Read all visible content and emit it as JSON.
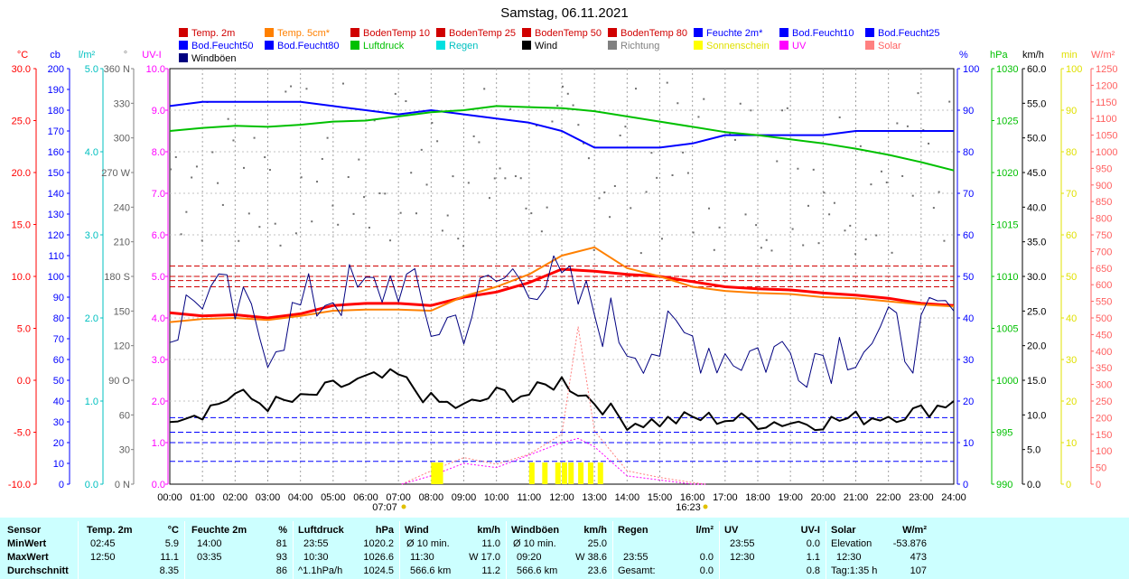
{
  "title": "Samstag, 06.11.2021",
  "legend": [
    {
      "label": "Temp. 2m",
      "color": "#d00000"
    },
    {
      "label": "Temp. 5cm*",
      "color": "#ff8000"
    },
    {
      "label": "BodenTemp 10",
      "color": "#d00000"
    },
    {
      "label": "BodenTemp 25",
      "color": "#d00000"
    },
    {
      "label": "BodenTemp 50",
      "color": "#d00000"
    },
    {
      "label": "BodenTemp 80",
      "color": "#d00000"
    },
    {
      "label": "Feuchte 2m*",
      "color": "#0000ff"
    },
    {
      "label": "Bod.Feucht10",
      "color": "#0000ff"
    },
    {
      "label": "Bod.Feucht25",
      "color": "#0000ff"
    },
    {
      "label": "Bod.Feucht50",
      "color": "#0000ff"
    },
    {
      "label": "Bod.Feucht80",
      "color": "#0000ff"
    },
    {
      "label": "Luftdruck",
      "color": "#00c000"
    },
    {
      "label": "Regen",
      "color": "#00e0e0"
    },
    {
      "label": "Wind",
      "color": "#000000"
    },
    {
      "label": "Richtung",
      "color": "#808080"
    },
    {
      "label": "Sonnenschein",
      "color": "#ffff00"
    },
    {
      "label": "UV",
      "color": "#ff00ff"
    },
    {
      "label": "Solar",
      "color": "#ff8080"
    },
    {
      "label": "Windböen",
      "color": "#000080"
    }
  ],
  "sunrise": "07:07",
  "sunset": "16:23",
  "chart_data": {
    "type": "line",
    "title": "Samstag, 06.11.2021",
    "x_ticks": [
      "00:00",
      "01:00",
      "02:00",
      "03:00",
      "04:00",
      "05:00",
      "06:00",
      "07:00",
      "08:00",
      "09:00",
      "10:00",
      "11:00",
      "12:00",
      "13:00",
      "14:00",
      "15:00",
      "16:00",
      "17:00",
      "18:00",
      "19:00",
      "20:00",
      "21:00",
      "22:00",
      "23:00",
      "24:00"
    ],
    "axes": [
      {
        "unit": "°C",
        "color": "#ff0000",
        "range": [
          -10,
          30
        ],
        "ticks": [
          "30.0",
          "25.0",
          "20.0",
          "15.0",
          "10.0",
          "5.0",
          "0.0",
          "-5.0",
          "-10.0"
        ]
      },
      {
        "unit": "cb",
        "color": "#0000ff",
        "range": [
          0,
          200
        ],
        "ticks": [
          "200",
          "190",
          "180",
          "170",
          "160",
          "150",
          "140",
          "130",
          "120",
          "110",
          "100",
          "90",
          "80",
          "70",
          "60",
          "50",
          "40",
          "30",
          "20",
          "10",
          "0"
        ]
      },
      {
        "unit": "l/m²",
        "color": "#00c0c0",
        "range": [
          0,
          5
        ],
        "ticks": [
          "5.0",
          "4.0",
          "3.0",
          "2.0",
          "1.0",
          "0.0"
        ]
      },
      {
        "unit": "°",
        "color": "#808080",
        "range": [
          0,
          360
        ],
        "ticks": [
          "360 N",
          "330",
          "300",
          "270 W",
          "240",
          "210",
          "180 S",
          "150",
          "120",
          "90 O",
          "60",
          "30",
          "0 N"
        ]
      },
      {
        "unit": "UV-I",
        "color": "#ff00ff",
        "range": [
          0,
          10
        ],
        "ticks": [
          "10.0",
          "9.0",
          "8.0",
          "7.0",
          "6.0",
          "5.0",
          "4.0",
          "3.0",
          "2.0",
          "1.0",
          "0.0"
        ]
      },
      {
        "unit": "%",
        "color": "#0000ff",
        "range": [
          0,
          100
        ],
        "ticks": [
          "100",
          "90",
          "80",
          "70",
          "60",
          "50",
          "40",
          "30",
          "20",
          "10",
          "0"
        ]
      },
      {
        "unit": "hPa",
        "color": "#00c000",
        "range": [
          990,
          1030
        ],
        "ticks": [
          "1030",
          "1025",
          "1020",
          "1015",
          "1010",
          "1005",
          "1000",
          "995",
          "990"
        ]
      },
      {
        "unit": "km/h",
        "color": "#000000",
        "range": [
          0,
          60
        ],
        "ticks": [
          "60.0",
          "55.0",
          "50.0",
          "45.0",
          "40.0",
          "35.0",
          "30.0",
          "25.0",
          "20.0",
          "15.0",
          "10.0",
          "5.0",
          "0.0"
        ]
      },
      {
        "unit": "min",
        "color": "#e0e000",
        "range": [
          0,
          100
        ],
        "ticks": [
          "100",
          "90",
          "80",
          "70",
          "60",
          "50",
          "40",
          "30",
          "20",
          "10",
          "0"
        ]
      },
      {
        "unit": "W/m²",
        "color": "#ff6060",
        "range": [
          0,
          1250
        ],
        "ticks": [
          "1250",
          "1200",
          "1150",
          "1100",
          "1050",
          "1000",
          "950",
          "900",
          "850",
          "800",
          "750",
          "700",
          "650",
          "600",
          "550",
          "500",
          "450",
          "400",
          "350",
          "300",
          "250",
          "200",
          "150",
          "100",
          "50",
          "0"
        ]
      }
    ],
    "series": [
      {
        "name": "Temp. 2m",
        "unit": "°C",
        "color": "#ff0000",
        "x": [
          0,
          1,
          2,
          3,
          4,
          5,
          6,
          7,
          8,
          9,
          10,
          11,
          12,
          13,
          14,
          15,
          16,
          17,
          18,
          19,
          20,
          21,
          22,
          23,
          24
        ],
        "y": [
          6.5,
          6.2,
          6.3,
          6.0,
          6.4,
          7.2,
          7.4,
          7.4,
          7.2,
          8.0,
          8.5,
          9.4,
          10.7,
          10.5,
          10.2,
          10.0,
          9.5,
          9.0,
          8.8,
          8.7,
          8.4,
          8.2,
          7.9,
          7.4,
          7.2
        ]
      },
      {
        "name": "Temp. 5cm*",
        "unit": "°C",
        "color": "#ff8000",
        "x": [
          0,
          1,
          2,
          3,
          4,
          5,
          6,
          7,
          8,
          9,
          10,
          11,
          12,
          13,
          14,
          15,
          16,
          17,
          18,
          19,
          20,
          21,
          22,
          23,
          24
        ],
        "y": [
          5.6,
          5.9,
          6.0,
          5.8,
          6.2,
          6.7,
          6.8,
          6.8,
          6.7,
          8.1,
          9.0,
          10.2,
          12.0,
          12.8,
          10.8,
          10.0,
          9.0,
          8.6,
          8.4,
          8.3,
          8.0,
          7.9,
          7.6,
          7.3,
          7.1
        ]
      },
      {
        "name": "Feuchte 2m*",
        "unit": "%",
        "color": "#0000ff",
        "x": [
          0,
          1,
          2,
          3,
          4,
          5,
          6,
          7,
          8,
          9,
          10,
          11,
          12,
          13,
          14,
          15,
          16,
          17,
          18,
          19,
          20,
          21,
          22,
          23,
          24
        ],
        "y": [
          91,
          92,
          92,
          92,
          92,
          91,
          90,
          89,
          90,
          89,
          88,
          87,
          85,
          81,
          81,
          81,
          82,
          84,
          84,
          84,
          84,
          85,
          85,
          85,
          85
        ]
      },
      {
        "name": "Luftdruck",
        "unit": "hPa",
        "color": "#00c000",
        "x": [
          0,
          1,
          2,
          3,
          4,
          5,
          6,
          7,
          8,
          9,
          10,
          11,
          12,
          13,
          14,
          15,
          16,
          17,
          18,
          19,
          20,
          21,
          22,
          23,
          24
        ],
        "y": [
          1024.0,
          1024.3,
          1024.5,
          1024.4,
          1024.6,
          1024.9,
          1025.0,
          1025.4,
          1025.8,
          1026.0,
          1026.4,
          1026.3,
          1026.2,
          1025.9,
          1025.4,
          1024.9,
          1024.4,
          1023.9,
          1023.6,
          1023.2,
          1022.8,
          1022.3,
          1021.7,
          1021.0,
          1020.2
        ]
      },
      {
        "name": "Wind",
        "unit": "km/h",
        "color": "#000000",
        "x": [
          0,
          1,
          2,
          3,
          4,
          5,
          6,
          7,
          8,
          9,
          10,
          11,
          12,
          13,
          14,
          15,
          16,
          17,
          18,
          19,
          20,
          21,
          22,
          23,
          24
        ],
        "y": [
          10,
          10.5,
          13,
          11.5,
          12,
          14,
          15,
          15.5,
          12,
          11,
          13,
          13,
          15,
          12,
          9,
          9,
          9.5,
          9.5,
          9,
          9,
          9,
          9.5,
          10,
          10.5,
          12
        ]
      },
      {
        "name": "Windböen",
        "unit": "km/h",
        "color": "#000080",
        "x": [
          0,
          1,
          2,
          3,
          4,
          5,
          6,
          7,
          8,
          9,
          10,
          11,
          12,
          13,
          14,
          15,
          16,
          17,
          18,
          19,
          20,
          21,
          22,
          23,
          24
        ],
        "y": [
          22,
          28,
          25,
          21,
          25,
          28,
          27,
          30,
          23,
          24,
          29,
          31,
          28,
          25,
          21,
          20,
          21,
          19,
          19,
          19,
          19,
          21,
          21,
          21,
          25
        ]
      },
      {
        "name": "Solar",
        "unit": "W/m²",
        "color": "#ff8080",
        "x": [
          7.1,
          8,
          9,
          10,
          11,
          12,
          12.5,
          13,
          14,
          15,
          16,
          16.4
        ],
        "y": [
          0,
          40,
          80,
          60,
          90,
          150,
          473,
          160,
          40,
          20,
          5,
          0
        ]
      },
      {
        "name": "UV",
        "unit": "UV-I",
        "color": "#ff00ff",
        "x": [
          7.1,
          8,
          9,
          10,
          11,
          12,
          12.5,
          13,
          14,
          15,
          16,
          16.4
        ],
        "y": [
          0,
          0.2,
          0.5,
          0.4,
          0.7,
          1.0,
          1.1,
          0.9,
          0.2,
          0.1,
          0,
          0
        ]
      },
      {
        "name": "Sonnenschein",
        "unit": "min",
        "color": "#ffff00",
        "x": [
          8.0,
          8.1,
          8.2,
          11.0,
          11.4,
          11.8,
          12.0,
          12.2,
          12.5,
          12.8,
          13.1
        ],
        "y": [
          4,
          4,
          4,
          4,
          4,
          4,
          4,
          4,
          4,
          4,
          4
        ]
      }
    ]
  },
  "summary": {
    "sensor": {
      "header": "Sensor",
      "min": "MinWert",
      "max": "MaxWert",
      "avg": "Durchschnitt"
    },
    "temp": {
      "header": "Temp. 2m",
      "unit": "°C",
      "min_time": "02:45",
      "min_val": "5.9",
      "max_time": "12:50",
      "max_val": "11.1",
      "avg_val": "8.35"
    },
    "hum": {
      "header": "Feuchte 2m",
      "unit": "%",
      "min_time": "14:00",
      "min_val": "81",
      "max_time": "03:35",
      "max_val": "93",
      "avg_val": "86"
    },
    "press": {
      "header": "Luftdruck",
      "unit": "hPa",
      "min_time": "23:55",
      "min_val": "1020.2",
      "max_time": "10:30",
      "max_val": "1026.6",
      "avg_label": "^1.1hPa/h",
      "avg_val": "1024.5"
    },
    "wind": {
      "header": "Wind",
      "unit": "km/h",
      "min_label": "Ø 10 min.",
      "min_val": "11.0",
      "max_time": "11:30",
      "max_val": "W 17.0",
      "avg_label": "566.6 km",
      "avg_val": "11.2"
    },
    "gust": {
      "header": "Windböen",
      "unit": "km/h",
      "min_label": "Ø 10 min.",
      "min_val": "25.0",
      "max_time": "09:20",
      "max_val": "W 38.6",
      "avg_label": "566.6 km",
      "avg_val": "23.6"
    },
    "rain": {
      "header": "Regen",
      "unit": "l/m²",
      "max_time": "23:55",
      "max_val": "0.0",
      "avg_label": "Gesamt:",
      "avg_val": "0.0"
    },
    "uv": {
      "header": "UV",
      "unit": "UV-I",
      "min_time": "23:55",
      "min_val": "0.0",
      "max_time": "12:30",
      "max_val": "1.1",
      "avg_val": "0.8"
    },
    "solar": {
      "header": "Solar",
      "unit": "W/m²",
      "min_label": "Elevation",
      "min_val": "-53.876",
      "max_time": "12:30",
      "max_val": "473",
      "avg_label": "Tag:1:35 h",
      "avg_val": "107"
    }
  }
}
